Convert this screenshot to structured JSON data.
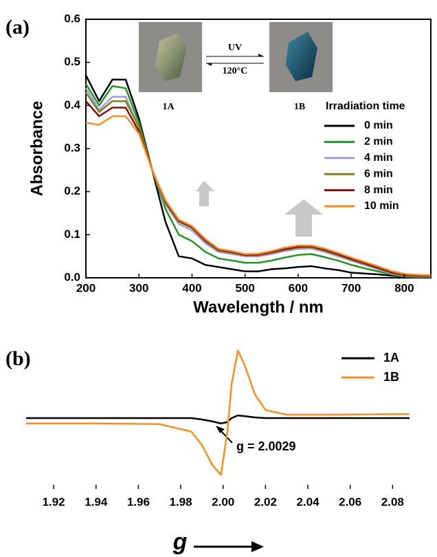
{
  "chart_data": [
    {
      "type": "line",
      "label": "(a)",
      "x_label": "Wavelength / nm",
      "y_label": "Absorbance",
      "annotations": [
        "UV",
        "120°C",
        "1A",
        "1B"
      ],
      "legend_title": "Irradiation time",
      "x": [
        200,
        225,
        250,
        275,
        300,
        325,
        350,
        375,
        400,
        425,
        450,
        475,
        500,
        525,
        550,
        575,
        600,
        625,
        650,
        675,
        700,
        725,
        750,
        775,
        800,
        825,
        850
      ],
      "series": [
        {
          "name": "0 min",
          "color": "#000000",
          "values": [
            0.47,
            0.41,
            0.46,
            0.46,
            0.37,
            0.25,
            0.13,
            0.05,
            0.045,
            0.03,
            0.025,
            0.02,
            0.015,
            0.015,
            0.02,
            0.022,
            0.025,
            0.027,
            0.022,
            0.018,
            0.012,
            0.01,
            0.008,
            0.005,
            0.003,
            0.002,
            0.001
          ]
        },
        {
          "name": "2 min",
          "color": "#1a9a1a",
          "values": [
            0.45,
            0.4,
            0.445,
            0.44,
            0.36,
            0.25,
            0.16,
            0.1,
            0.085,
            0.06,
            0.045,
            0.04,
            0.035,
            0.035,
            0.04,
            0.047,
            0.053,
            0.055,
            0.048,
            0.04,
            0.03,
            0.022,
            0.015,
            0.008,
            0.003,
            0.002,
            0.002
          ]
        },
        {
          "name": "4 min",
          "color": "#9a9af0",
          "values": [
            0.44,
            0.39,
            0.42,
            0.42,
            0.35,
            0.25,
            0.17,
            0.125,
            0.11,
            0.08,
            0.06,
            0.055,
            0.05,
            0.05,
            0.055,
            0.062,
            0.067,
            0.068,
            0.06,
            0.05,
            0.04,
            0.03,
            0.02,
            0.01,
            0.005,
            0.003,
            0.003
          ]
        },
        {
          "name": "6 min",
          "color": "#808010",
          "values": [
            0.43,
            0.385,
            0.41,
            0.41,
            0.35,
            0.25,
            0.175,
            0.13,
            0.115,
            0.085,
            0.063,
            0.058,
            0.052,
            0.052,
            0.058,
            0.065,
            0.07,
            0.071,
            0.063,
            0.053,
            0.042,
            0.032,
            0.022,
            0.012,
            0.006,
            0.004,
            0.004
          ]
        },
        {
          "name": "8 min",
          "color": "#8b0a0a",
          "values": [
            0.41,
            0.375,
            0.395,
            0.395,
            0.34,
            0.25,
            0.177,
            0.133,
            0.118,
            0.087,
            0.065,
            0.06,
            0.053,
            0.054,
            0.06,
            0.067,
            0.072,
            0.073,
            0.065,
            0.055,
            0.044,
            0.034,
            0.024,
            0.013,
            0.007,
            0.005,
            0.005
          ]
        },
        {
          "name": "10 min",
          "color": "#ff8c1a",
          "values": [
            0.36,
            0.355,
            0.375,
            0.375,
            0.335,
            0.25,
            0.18,
            0.135,
            0.12,
            0.09,
            0.067,
            0.062,
            0.055,
            0.056,
            0.062,
            0.07,
            0.075,
            0.075,
            0.068,
            0.058,
            0.047,
            0.037,
            0.027,
            0.016,
            0.009,
            0.007,
            0.006
          ]
        }
      ],
      "xlim": [
        200,
        850
      ],
      "xticks": [
        200,
        300,
        400,
        500,
        600,
        700,
        800
      ],
      "ylim": [
        0,
        0.6
      ],
      "yticks": [
        {
          "value": 0,
          "label": "0.0"
        },
        0.1,
        0.2,
        0.3,
        0.4,
        0.5,
        0.6
      ]
    },
    {
      "type": "line",
      "label": "(b)",
      "x_label": "g",
      "annotation": "g = 2.0029",
      "x": [
        1.907,
        1.94,
        1.97,
        1.985,
        1.99,
        1.995,
        1.999,
        2.002,
        2.004,
        2.007,
        2.01,
        2.015,
        2.02,
        2.03,
        2.05,
        2.088
      ],
      "series": [
        {
          "name": "1A",
          "color": "#000000",
          "values": [
            0,
            0,
            0,
            0,
            -0.02,
            -0.05,
            -0.08,
            -0.06,
            0,
            0.04,
            0.03,
            0.01,
            0,
            0,
            0,
            0
          ]
        },
        {
          "name": "1B",
          "color": "#ff8c1a",
          "values": [
            -0.08,
            -0.08,
            -0.09,
            -0.2,
            -0.4,
            -0.7,
            -0.84,
            -0.2,
            0.5,
            1.0,
            0.8,
            0.35,
            0.12,
            0.05,
            0.05,
            0.06
          ]
        }
      ],
      "xlim": [
        1.907,
        2.088
      ],
      "xticks": [
        1.92,
        1.94,
        1.96,
        1.98,
        {
          "value": 2,
          "label": "2.00"
        },
        2.02,
        2.04,
        2.06,
        2.08
      ],
      "ylim": [
        -1.05,
        1.05
      ]
    }
  ]
}
